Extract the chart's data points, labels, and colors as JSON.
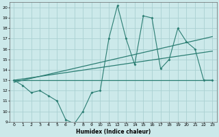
{
  "xlabel": "Humidex (Indice chaleur)",
  "ylabel": "",
  "xlim": [
    -0.5,
    23.5
  ],
  "ylim": [
    9,
    20.5
  ],
  "yticks": [
    9,
    10,
    11,
    12,
    13,
    14,
    15,
    16,
    17,
    18,
    19,
    20
  ],
  "xticks": [
    0,
    1,
    2,
    3,
    4,
    5,
    6,
    7,
    8,
    9,
    10,
    11,
    12,
    13,
    14,
    15,
    16,
    17,
    18,
    19,
    20,
    21,
    22,
    23
  ],
  "bg_color": "#cce9ea",
  "grid_color": "#aad0d2",
  "line_color": "#2a7d72",
  "line1_x": [
    0,
    1,
    2,
    3,
    4,
    5,
    6,
    7,
    8,
    9,
    10,
    11,
    12,
    13,
    14,
    15,
    16,
    17,
    18,
    19,
    20,
    21,
    22,
    23
  ],
  "line1_y": [
    13.0,
    12.5,
    11.8,
    12.0,
    11.5,
    11.0,
    9.2,
    8.8,
    10.0,
    11.8,
    12.0,
    17.0,
    20.2,
    17.0,
    14.5,
    19.2,
    19.0,
    14.1,
    15.0,
    18.0,
    16.7,
    16.0,
    13.0,
    13.0
  ],
  "line2_x": [
    0,
    23
  ],
  "line2_y": [
    13.0,
    13.0
  ],
  "line3_x": [
    0,
    23
  ],
  "line3_y": [
    12.8,
    17.2
  ],
  "line4_x": [
    0,
    23
  ],
  "line4_y": [
    13.0,
    15.8
  ]
}
